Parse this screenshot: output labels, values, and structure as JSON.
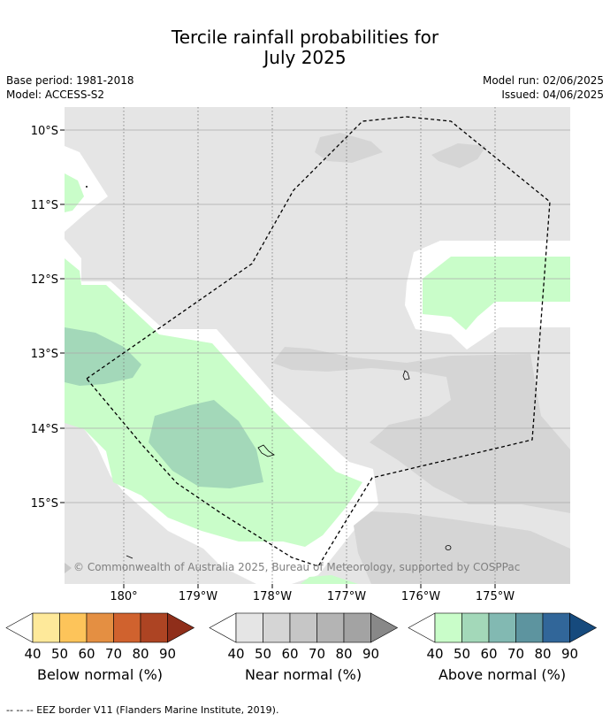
{
  "title_line1": "Tercile rainfall probabilities for",
  "title_line2": "July 2025",
  "meta": {
    "base_period": "Base period: 1981-2018",
    "model": "Model: ACCESS-S2",
    "model_run": "Model run: 02/06/2025",
    "issued": "Issued: 04/06/2025"
  },
  "map": {
    "lat_labels": [
      "10°S",
      "11°S",
      "12°S",
      "13°S",
      "14°S",
      "15°S"
    ],
    "lon_labels": [
      "180°",
      "179°W",
      "178°W",
      "177°W",
      "176°W",
      "175°W"
    ],
    "copyright": "© Commonwealth of Australia 2025, Bureau of Meteorology, supported by COSPPac"
  },
  "colorbars": {
    "ticks": [
      "40",
      "50",
      "60",
      "70",
      "80",
      "90"
    ],
    "below": {
      "label": "Below normal (%)",
      "colors": [
        "#ffffff",
        "#fee99a",
        "#fdc45a",
        "#e48f42",
        "#d0622e",
        "#ad4423",
        "#8f2e1a"
      ]
    },
    "near": {
      "label": "Near normal (%)",
      "colors": [
        "#ffffff",
        "#e5e5e5",
        "#d5d5d5",
        "#c6c6c6",
        "#b4b4b4",
        "#a3a3a3",
        "#888888"
      ]
    },
    "above": {
      "label": "Above normal (%)",
      "colors": [
        "#ffffff",
        "#c9fdc9",
        "#a3d8b9",
        "#82b9b2",
        "#5d949f",
        "#316699",
        "#164a7d"
      ]
    }
  },
  "footer": "--  --  -- EEZ border V11 (Flanders Marine Institute, 2019)."
}
